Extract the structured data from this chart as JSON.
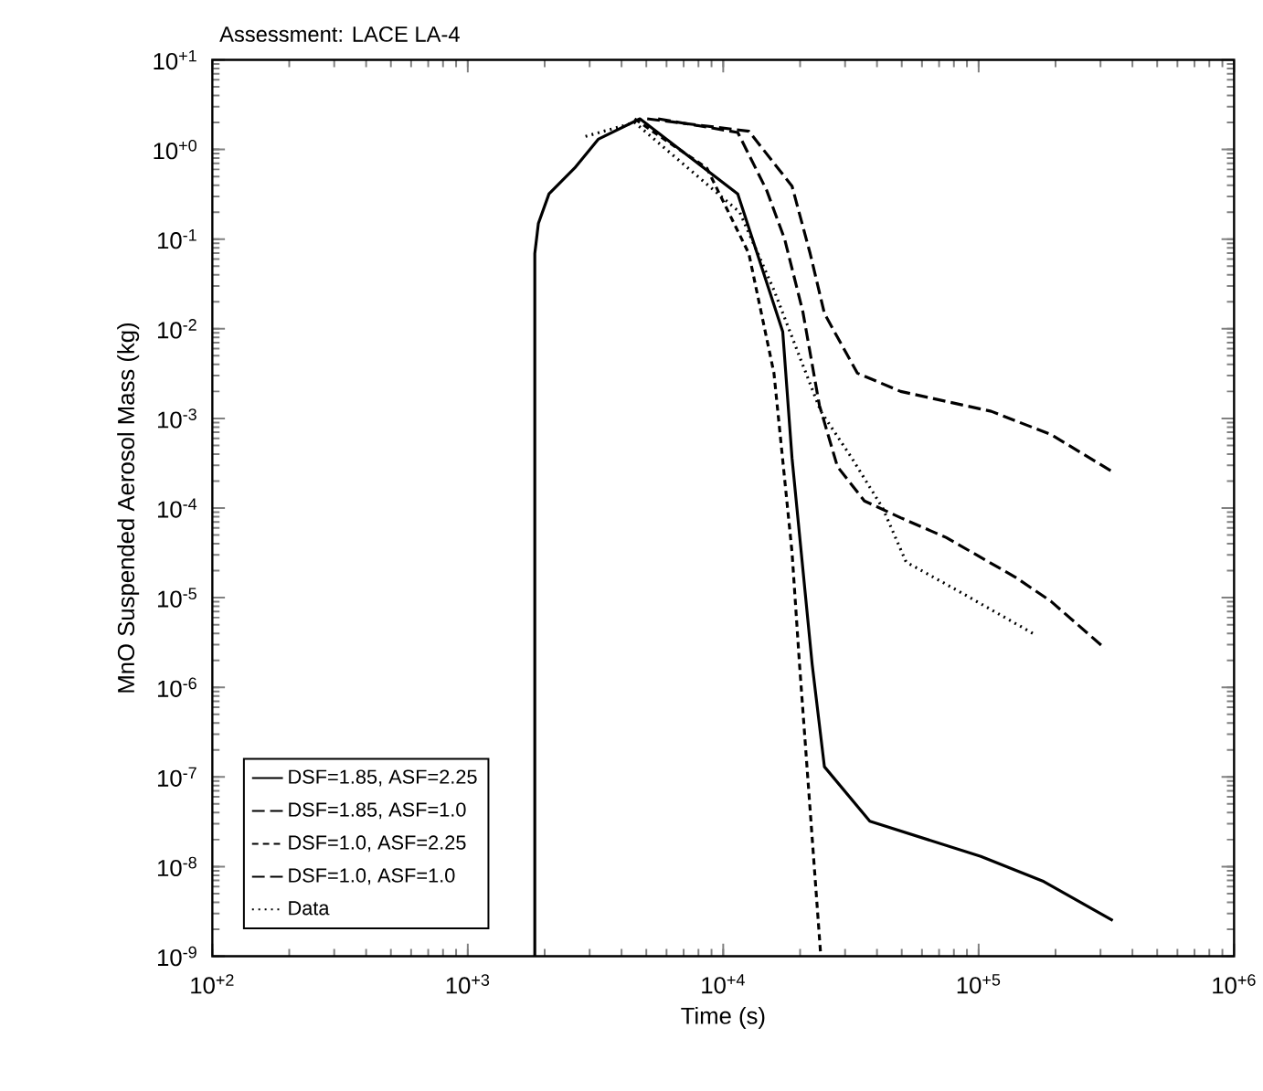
{
  "chart_data": {
    "type": "line",
    "title": "Assessment: LACE LA-4",
    "xlabel": "Time (s)",
    "ylabel": "MnO Suspended Aerosol Mass (kg)",
    "log": "xy",
    "grid": false,
    "legend": "bottom left",
    "marker": "none",
    "xlim": [
      100,
      1000000
    ],
    "ylim": [
      1e-09,
      10
    ],
    "xticks": [
      {
        "value": 100,
        "label": "10$^{+2}$"
      },
      {
        "value": 1000,
        "label": "10$^{+3}$"
      },
      {
        "value": 10000,
        "label": "10$^{+4}$"
      },
      {
        "value": 100000,
        "label": "10$^{+5}$"
      },
      {
        "value": 1000000,
        "label": "10$^{+6}$"
      }
    ],
    "yticks": [
      {
        "value": 1e-09,
        "label": "10$^{-9}$"
      },
      {
        "value": 1e-08,
        "label": "10$^{-8}$"
      },
      {
        "value": 1e-07,
        "label": "10$^{-7}$"
      },
      {
        "value": 1e-06,
        "label": "10$^{-6}$"
      },
      {
        "value": 1e-05,
        "label": "10$^{-5}$"
      },
      {
        "value": 0.0001,
        "label": "10$^{-4}$"
      },
      {
        "value": 0.001,
        "label": "10$^{-3}$"
      },
      {
        "value": 0.01,
        "label": "10$^{-2}$"
      },
      {
        "value": 0.1,
        "label": "10$^{-1}$"
      },
      {
        "value": 1,
        "label": "10$^{+0}$"
      },
      {
        "value": 10,
        "label": "10$^{+1}$"
      }
    ],
    "series": [
      {
        "name": "DSF=1.85,  ASF=2.25",
        "color": "#000000",
        "line_style": "solid",
        "x": [
          1830,
          1830,
          1890,
          2080,
          2620,
          3240,
          4720,
          11400,
          17100,
          18600,
          22300,
          24900,
          37500,
          102000,
          180000,
          335000
        ],
        "values": [
          1e-09,
          0.069,
          0.15,
          0.32,
          0.62,
          1.3,
          2.2,
          0.32,
          0.0093,
          0.00036,
          1.8e-06,
          1.3e-07,
          3.2e-08,
          1.3e-08,
          6.8e-09,
          2.5e-09
        ]
      },
      {
        "name": "DSF=1.85,  ASF=1.0",
        "color": "#000000",
        "line_style": "long dashed",
        "x": [
          5040,
          12600,
          18600,
          21900,
          24900,
          33500,
          49500,
          112000,
          192000,
          330000
        ],
        "values": [
          2.2,
          1.6,
          0.39,
          0.069,
          0.0148,
          0.0032,
          0.002,
          0.0012,
          0.00066,
          0.00026
        ]
      },
      {
        "name": "DSF=1.0,  ASF=2.25",
        "color": "#000000",
        "line_style": "dashed",
        "x": [
          4500,
          5280,
          8630,
          12600,
          15800,
          18600,
          19900,
          24100
        ],
        "values": [
          2.2,
          1.6,
          0.62,
          0.069,
          0.0032,
          3.2e-05,
          1.8e-06,
          1e-09
        ]
      },
      {
        "name": "DSF=1.0,  ASF=1.0",
        "color": "#000000",
        "line_style": "long dashed",
        "x": [
          5560,
          11400,
          14800,
          17400,
          20500,
          23800,
          28000,
          35700,
          49500,
          74500,
          139000,
          192000,
          313000
        ],
        "values": [
          2.2,
          1.55,
          0.35,
          0.1,
          0.0155,
          0.0014,
          0.00029,
          0.00012,
          7.8e-05,
          4.7e-05,
          1.7e-05,
          9.1e-06,
          2.7e-06
        ]
      },
      {
        "name": "Data",
        "color": "#000000",
        "line_style": "dotted",
        "x": [
          2890,
          4500,
          11600,
          15800,
          19900,
          24100,
          31900,
          42100,
          52000,
          84900,
          163000
        ],
        "values": [
          1.4,
          2.0,
          0.2,
          0.027,
          0.0049,
          0.0012,
          0.00036,
          0.0001,
          2.5e-05,
          1.15e-05,
          4e-06
        ]
      }
    ]
  }
}
